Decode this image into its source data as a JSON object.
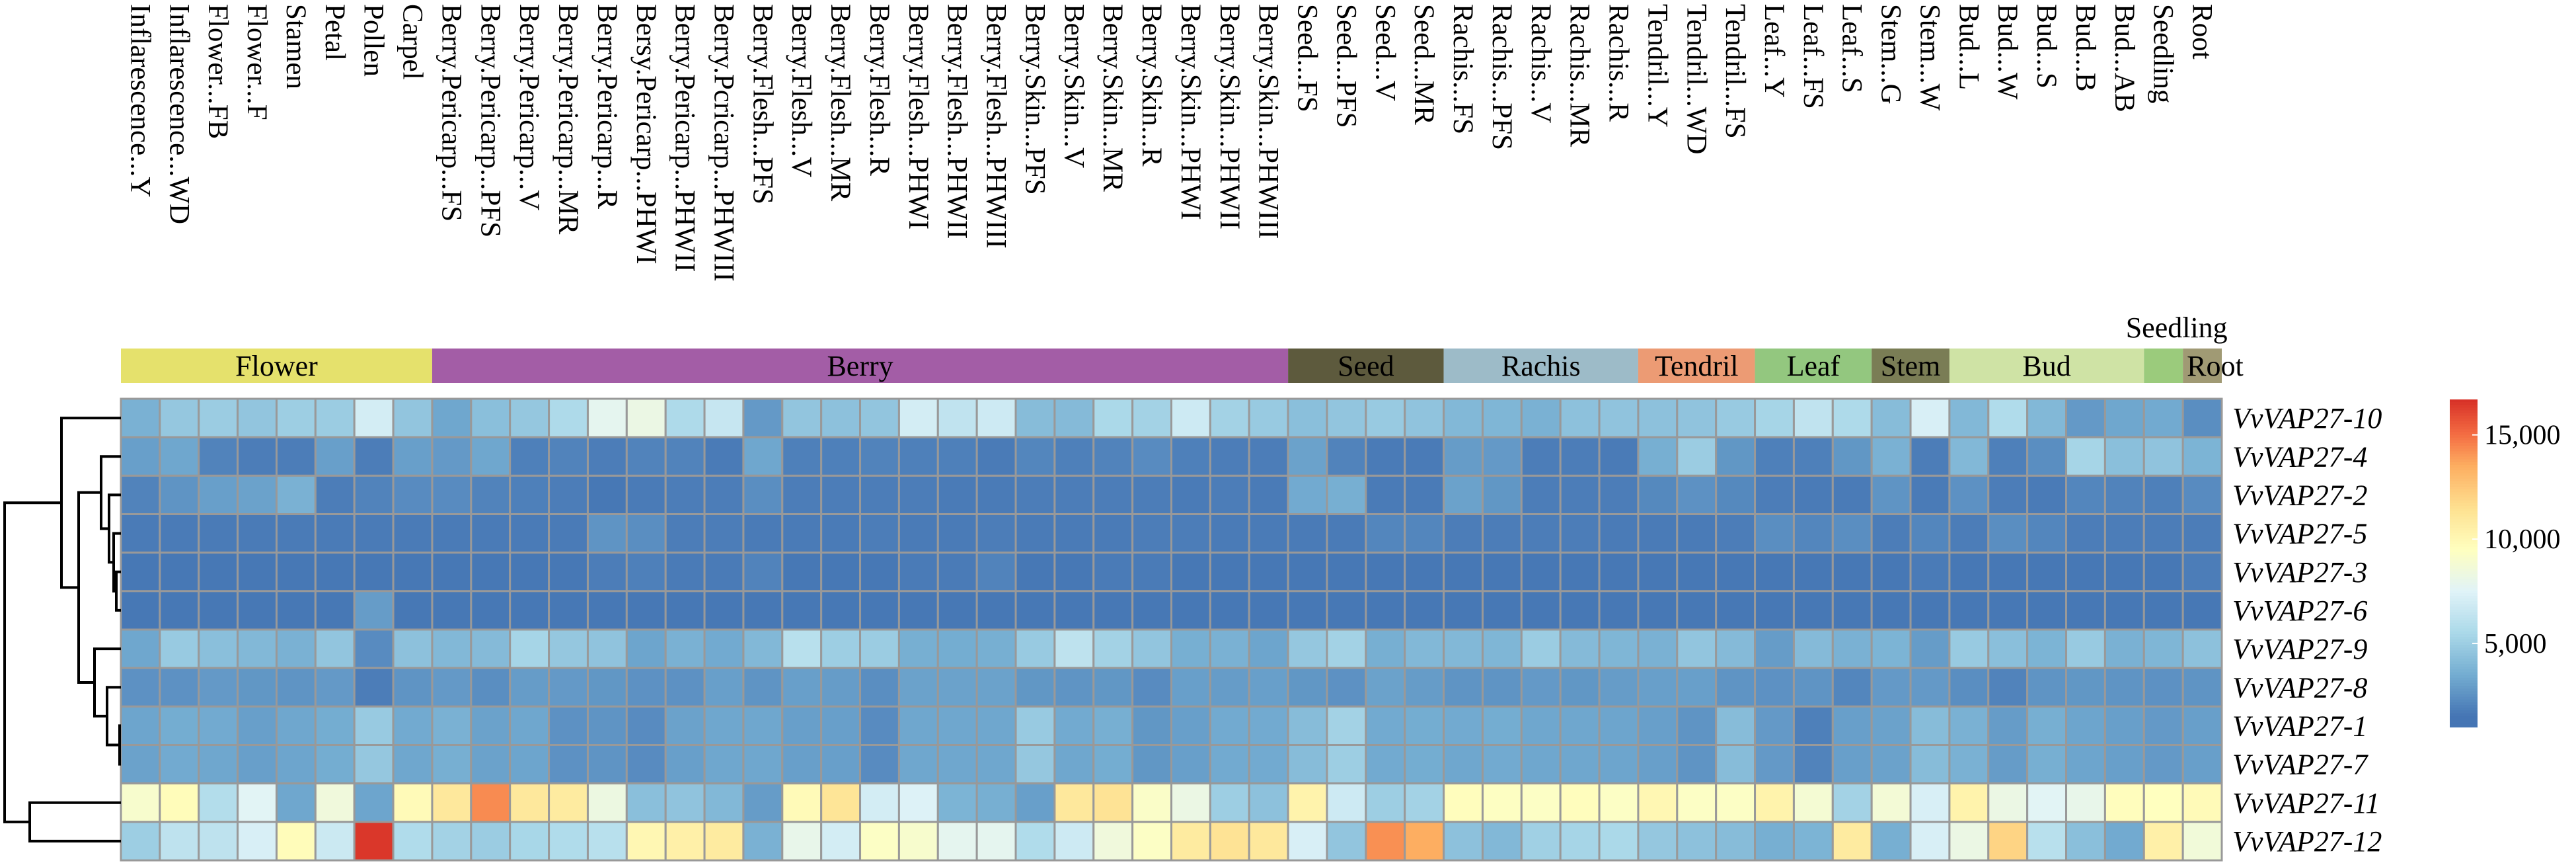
{
  "chart_data": {
    "type": "heatmap",
    "rows": [
      "VvVAP27-10",
      "VvVAP27-4",
      "VvVAP27-2",
      "VvVAP27-5",
      "VvVAP27-3",
      "VvVAP27-6",
      "VvVAP27-9",
      "VvVAP27-8",
      "VvVAP27-1",
      "VvVAP27-7",
      "VvVAP27-11",
      "VvVAP27-12"
    ],
    "columns": [
      "Inflarescence...Y",
      "Inflarescence...WD",
      "Flower...FB",
      "Flower...F",
      "Stamen",
      "Petal",
      "Pollen",
      "Carpel",
      "Berry.Pericarp...FS",
      "Berry.Pericarp...PFS",
      "Berry.Pericarp...V",
      "Berry.Pericarp...MR",
      "Berry.Pericarp...R",
      "Bersy.Pericarp...PHWI",
      "Berry.Pericarp...PHWII",
      "Berry.Pcricarp...PHWIII",
      "Berry.Flesh...PFS",
      "Berry.Flesh...V",
      "Berry.Flesh...MR",
      "Berry.Flesh...R",
      "Berry.Flesh...PHWI",
      "Berry.Flesh...PHWII",
      "Berry.Flesh...PHWIII",
      "Berry.Skin...PFS",
      "Berry.Skin...V",
      "Berry.Skin...MR",
      "Berry.Skin...R",
      "Berry.Skin...PHWI",
      "Berry.Skin...PHWII",
      "Berry.Skin...PHWIII",
      "Seed...FS",
      "Seed...PFS",
      "Seed...V",
      "Seed...MR",
      "Rachis...FS",
      "Rachis...PFS",
      "Rachis...V",
      "Rachis...MR",
      "Rachis...R",
      "Tendril...Y",
      "Tendril...WD",
      "Tendril...FS",
      "Leaf...Y",
      "Leaf...FS",
      "Leaf...S",
      "Stem...G",
      "Stem...W",
      "Bud...L",
      "Bud...W",
      "Bud...S",
      "Bud...B",
      "Bud...AB",
      "Seedling",
      "Root"
    ],
    "groups": [
      {
        "name": "Flower",
        "count": 8,
        "color": "#e5e16c"
      },
      {
        "name": "Berry",
        "count": 22,
        "color": "#a35da6"
      },
      {
        "name": "Seed",
        "count": 4,
        "color": "#5d5a3d"
      },
      {
        "name": "Rachis",
        "count": 5,
        "color": "#9dbbc8"
      },
      {
        "name": "Tendril",
        "count": 3,
        "color": "#ec9b74"
      },
      {
        "name": "Leaf",
        "count": 3,
        "color": "#93c77f"
      },
      {
        "name": "Stem",
        "count": 2,
        "color": "#7a7d55"
      },
      {
        "name": "Bud",
        "count": 5,
        "color": "#cfe3a5"
      },
      {
        "name": "Seedling",
        "count": 1,
        "color": "#9bcb7c"
      },
      {
        "name": "Root",
        "count": 1,
        "color": "#a09a74"
      }
    ],
    "values": [
      [
        3700,
        4700,
        4900,
        4600,
        5000,
        4900,
        7000,
        4600,
        3300,
        4300,
        4700,
        5600,
        7800,
        8200,
        5600,
        6500,
        2800,
        4600,
        4400,
        4600,
        7000,
        6300,
        6800,
        4200,
        4100,
        5500,
        5200,
        6800,
        5200,
        4800,
        4300,
        4600,
        4800,
        4500,
        4000,
        3900,
        3700,
        4400,
        4500,
        4400,
        4500,
        4800,
        5300,
        6300,
        5600,
        4200,
        7200,
        4000,
        5700,
        4000,
        2800,
        3300,
        3400,
        2400
      ],
      [
        3000,
        3300,
        2000,
        1800,
        1800,
        3000,
        1800,
        3000,
        2800,
        3300,
        1900,
        2000,
        1800,
        2000,
        2000,
        1700,
        3300,
        1900,
        1900,
        2000,
        1900,
        1900,
        1700,
        2100,
        1900,
        2000,
        2300,
        1900,
        1800,
        1800,
        3100,
        2000,
        1700,
        1700,
        2900,
        2800,
        1800,
        1800,
        1700,
        3600,
        4900,
        2700,
        1900,
        1900,
        2700,
        3700,
        1800,
        4000,
        1900,
        2400,
        5300,
        4300,
        4500,
        3800
      ],
      [
        2000,
        2600,
        3000,
        3100,
        3700,
        1800,
        2000,
        2300,
        2300,
        2000,
        1900,
        1800,
        1600,
        1700,
        1800,
        1800,
        2400,
        1800,
        1800,
        1800,
        1800,
        1700,
        1700,
        1800,
        1800,
        1800,
        1800,
        1700,
        1800,
        1700,
        3400,
        3600,
        1700,
        1700,
        3100,
        2700,
        1800,
        1800,
        1800,
        2200,
        2500,
        2200,
        1800,
        1700,
        1700,
        2600,
        1700,
        2500,
        1800,
        1700,
        2100,
        2000,
        1900,
        2300
      ],
      [
        1700,
        1700,
        1700,
        1700,
        1700,
        1700,
        1700,
        1700,
        1700,
        1700,
        1700,
        1700,
        2600,
        2400,
        1800,
        1800,
        1700,
        1700,
        1700,
        1800,
        1700,
        1700,
        1800,
        1700,
        1700,
        1700,
        1800,
        1800,
        1700,
        1700,
        1700,
        1700,
        2100,
        2100,
        1800,
        1800,
        1800,
        1800,
        1700,
        1700,
        1700,
        1800,
        2400,
        2100,
        2400,
        1800,
        2100,
        1800,
        2400,
        2100,
        1800,
        1800,
        1800,
        1800
      ],
      [
        1600,
        1600,
        1600,
        1600,
        1600,
        1600,
        1600,
        1600,
        1600,
        1600,
        1600,
        1600,
        1800,
        1900,
        1700,
        1700,
        2000,
        1600,
        1600,
        1600,
        1700,
        1700,
        2000,
        1600,
        1600,
        1700,
        1700,
        1600,
        1600,
        1600,
        1600,
        1600,
        1600,
        1600,
        1600,
        1600,
        1600,
        1600,
        1600,
        1600,
        1600,
        1600,
        1600,
        1600,
        1600,
        1600,
        1700,
        1600,
        1600,
        1600,
        1600,
        1600,
        1600,
        1800
      ],
      [
        1600,
        1600,
        1600,
        1600,
        1600,
        1600,
        2900,
        1600,
        1600,
        1600,
        1600,
        1600,
        1600,
        1600,
        1600,
        1600,
        1600,
        1600,
        1600,
        1600,
        1600,
        1600,
        1600,
        1600,
        1600,
        1600,
        1600,
        1600,
        1600,
        1600,
        1600,
        1600,
        1600,
        1600,
        1600,
        1600,
        1600,
        1600,
        1600,
        1600,
        1600,
        1600,
        1600,
        1600,
        1600,
        1600,
        1600,
        1600,
        1600,
        1600,
        1600,
        1600,
        1600,
        1600
      ],
      [
        3300,
        4800,
        4300,
        4000,
        3700,
        4600,
        2300,
        4400,
        4000,
        4100,
        5300,
        4700,
        4500,
        3200,
        3700,
        3400,
        4000,
        6000,
        5000,
        4900,
        3600,
        3500,
        3600,
        4800,
        6200,
        5200,
        4600,
        3600,
        3700,
        3200,
        4700,
        5200,
        3600,
        4000,
        4000,
        3900,
        4900,
        4100,
        3900,
        3700,
        4600,
        4100,
        2900,
        4100,
        3700,
        3800,
        2900,
        4800,
        4300,
        3800,
        4800,
        3700,
        3900,
        4400
      ],
      [
        2500,
        2500,
        2800,
        2700,
        2600,
        2800,
        1800,
        2600,
        2800,
        2400,
        2900,
        2800,
        2700,
        2500,
        2500,
        3000,
        2600,
        3000,
        2900,
        2400,
        3100,
        3100,
        3100,
        2700,
        2600,
        2700,
        2300,
        3000,
        2900,
        3000,
        2700,
        2500,
        3100,
        2900,
        2600,
        2600,
        2800,
        2700,
        2900,
        3000,
        3000,
        2600,
        2500,
        2600,
        2100,
        2800,
        2800,
        2400,
        2000,
        2600,
        2700,
        2600,
        2500,
        2600
      ],
      [
        3200,
        3500,
        3400,
        3000,
        3300,
        3500,
        4800,
        3400,
        3700,
        3100,
        3300,
        2500,
        2600,
        2300,
        3100,
        3300,
        3300,
        3000,
        3000,
        2300,
        3300,
        3300,
        3300,
        4800,
        3400,
        3600,
        2700,
        3000,
        3400,
        3400,
        4200,
        5200,
        3400,
        3500,
        3400,
        3500,
        3300,
        3300,
        3200,
        3000,
        2600,
        4200,
        2800,
        1900,
        3000,
        3100,
        4200,
        3700,
        2900,
        3600,
        3200,
        3000,
        2800,
        3000
      ],
      [
        3100,
        3400,
        3300,
        3000,
        3200,
        3500,
        4700,
        3300,
        3600,
        3100,
        3200,
        2500,
        2600,
        2300,
        3000,
        3300,
        3300,
        3000,
        3000,
        2300,
        3300,
        3300,
        3300,
        4700,
        3300,
        3500,
        2700,
        3000,
        3400,
        3400,
        4200,
        5000,
        3400,
        3500,
        3300,
        3400,
        3300,
        3300,
        3200,
        3000,
        2600,
        4200,
        2800,
        2000,
        3000,
        3100,
        4200,
        3700,
        2900,
        3600,
        3200,
        3000,
        2800,
        3000
      ],
      [
        9000,
        9700,
        5800,
        7600,
        3300,
        8500,
        3200,
        9800,
        11000,
        14300,
        11000,
        10800,
        8300,
        4300,
        4500,
        4000,
        2900,
        9800,
        11200,
        7000,
        7400,
        3800,
        3600,
        3000,
        11000,
        11300,
        9200,
        8200,
        5000,
        4400,
        10300,
        6800,
        5000,
        5200,
        9600,
        9400,
        9300,
        9600,
        9300,
        10000,
        9300,
        9300,
        10300,
        8800,
        5200,
        8700,
        7200,
        10300,
        8200,
        7600,
        8000,
        9600,
        9500,
        9800
      ],
      [
        5000,
        6200,
        6200,
        7200,
        9700,
        6700,
        16500,
        5700,
        5200,
        4900,
        5400,
        5700,
        6000,
        10000,
        10500,
        10800,
        3700,
        8000,
        7000,
        9300,
        9000,
        7800,
        7800,
        5700,
        6800,
        8500,
        9300,
        10800,
        11300,
        11000,
        7200,
        4600,
        14200,
        13500,
        4400,
        4000,
        5100,
        5300,
        5500,
        4700,
        4400,
        4200,
        3600,
        3800,
        10800,
        3600,
        7200,
        8200,
        12000,
        6000,
        4300,
        3400,
        10500,
        8600
      ]
    ],
    "seedling_label": "Seedling",
    "colorbar": {
      "range": [
        1000,
        16700
      ],
      "ticks": [
        {
          "value": 5000,
          "label": "5,000"
        },
        {
          "value": 10000,
          "label": "10,000"
        },
        {
          "value": 15000,
          "label": "15,000"
        }
      ]
    },
    "colorscale": [
      {
        "value": 1500,
        "color": "#4575b4"
      },
      {
        "value": 3500,
        "color": "#74add1"
      },
      {
        "value": 5500,
        "color": "#abd9e9"
      },
      {
        "value": 7500,
        "color": "#e0f3f8"
      },
      {
        "value": 9500,
        "color": "#ffffbf"
      },
      {
        "value": 11500,
        "color": "#fee090"
      },
      {
        "value": 13500,
        "color": "#fdae61"
      },
      {
        "value": 15000,
        "color": "#f46d43"
      },
      {
        "value": 16700,
        "color": "#d73027"
      }
    ],
    "cell_border_color": "#999999",
    "dendrogram": "rows clustered"
  }
}
